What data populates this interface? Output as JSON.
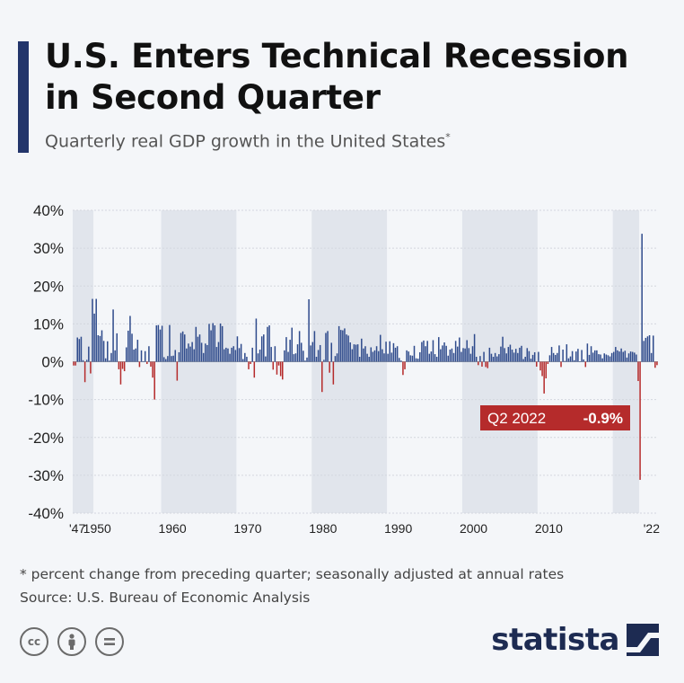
{
  "title": "U.S. Enters Technical Recession in Second Quarter",
  "subtitle": "Quarterly real GDP growth in the United States",
  "subtitle_marker": "*",
  "footnote": "* percent change from preceding quarter; seasonally adjusted at annual rates",
  "source": "Source: U.S. Bureau of Economic Analysis",
  "brand": "statista",
  "license_icons": [
    "creative-commons-icon",
    "attribution-icon",
    "no-derivatives-icon"
  ],
  "colors": {
    "accent": "#23356b",
    "positive": "#2f4b8c",
    "negative": "#b52b2b",
    "band": "#e1e5ec",
    "callout": "#b52b2b"
  },
  "chart_data": {
    "type": "bar",
    "title": "Quarterly real GDP growth in the United States",
    "xlabel": "",
    "ylabel": "",
    "ylim": [
      -40,
      40
    ],
    "yticks": [
      40,
      30,
      20,
      10,
      0,
      -10,
      -20,
      -30,
      -40
    ],
    "ytick_labels": [
      "40%",
      "30%",
      "20%",
      "10%",
      "0%",
      "-10%",
      "-20%",
      "-30%",
      "-40%"
    ],
    "x_start": 1947.25,
    "quarter_step": 0.25,
    "xticks": [
      {
        "label": "'47",
        "year": 1947.25
      },
      {
        "label": "1950",
        "year": 1950.5
      },
      {
        "label": "1960",
        "year": 1960.5
      },
      {
        "label": "1970",
        "year": 1970.5
      },
      {
        "label": "1980",
        "year": 1980.5
      },
      {
        "label": "1990",
        "year": 1990.5
      },
      {
        "label": "2000",
        "year": 2000.5
      },
      {
        "label": "2010",
        "year": 2010.5
      },
      {
        "label": "'22",
        "year": 2022.25
      }
    ],
    "shaded_bands": [
      [
        1947.25,
        1950
      ],
      [
        1959,
        1969
      ],
      [
        1979,
        1989
      ],
      [
        1999,
        2009
      ],
      [
        2019,
        2022.5
      ]
    ],
    "callout": {
      "label": "Q2 2022",
      "value_label": "-0.9%",
      "year": 2022.25,
      "value": -0.9
    },
    "values": [
      -1,
      -1,
      6.4,
      6,
      6.6,
      0.4,
      -5.4,
      0.5,
      4,
      -3.1,
      16.6,
      12.7,
      16.6,
      7,
      6.8,
      8.3,
      5.5,
      0.9,
      5.4,
      0.3,
      2.3,
      13.8,
      3,
      7.5,
      -2,
      -6,
      -1.9,
      -2.5,
      3.8,
      8.2,
      12.1,
      7.4,
      3.2,
      3.5,
      5.8,
      -1.4,
      3,
      0.1,
      2.8,
      -0.6,
      4.1,
      -1.3,
      -4.2,
      -10,
      9.6,
      9.7,
      8.5,
      9.5,
      1.2,
      0.7,
      1.5,
      9.7,
      1.5,
      1.6,
      3.1,
      -5,
      2.5,
      7.6,
      8,
      7.2,
      3.5,
      4.8,
      4,
      5.2,
      3.3,
      9.2,
      6.6,
      7.2,
      5,
      2.3,
      4.8,
      4.4,
      10,
      8.3,
      10.2,
      9.6,
      3.9,
      5.2,
      10.1,
      9.4,
      3.3,
      3.7,
      3.5,
      2.1,
      3.7,
      4.1,
      3.1,
      6.7,
      3.6,
      4.7,
      0.7,
      2.3,
      1.3,
      -2,
      -0.6,
      3.7,
      -4.2,
      11.4,
      2.2,
      3.2,
      6.7,
      7.2,
      1.4,
      9.2,
      9.6,
      3.9,
      -2.1,
      4.1,
      -3.4,
      -1,
      -3.8,
      -4.7,
      3,
      6.5,
      2.6,
      5.8,
      9,
      2,
      2.2,
      4.6,
      8.1,
      5,
      2.9,
      0.3,
      1.1,
      16.5,
      4.3,
      5.2,
      8.1,
      1.3,
      3.1,
      4.4,
      -8,
      0.5,
      7.6,
      8.1,
      -2.9,
      5,
      -6,
      1.5,
      2.2,
      9.4,
      8.4,
      8.3,
      8.8,
      7.2,
      6.9,
      5.1,
      3.3,
      4.6,
      4.5,
      4.6,
      1.3,
      6.1,
      3.5,
      4.1,
      2.1,
      1.3,
      3.8,
      2.6,
      3,
      4.1,
      2.8,
      7.1,
      3.3,
      2.2,
      5.3,
      2.1,
      5.4,
      2.4,
      4.9,
      3.7,
      4.1,
      1,
      0.3,
      -3.5,
      -2,
      3,
      2.7,
      1.7,
      1.6,
      4.2,
      0.9,
      0.8,
      2.5,
      5.2,
      5.6,
      4.1,
      5.5,
      2.1,
      2.7,
      5.7,
      2,
      1.3,
      6.5,
      3.3,
      4.3,
      5.1,
      4.2,
      1.6,
      3.2,
      3.5,
      2.3,
      5.5,
      4,
      6.4,
      2.6,
      3.6,
      3.5,
      5.7,
      3.6,
      2.1,
      4.1,
      7.3,
      1.3,
      -0.9,
      1.5,
      -1.3,
      2.6,
      -1.4,
      -1.7,
      3.7,
      2.1,
      1.3,
      2.3,
      1.4,
      2,
      4,
      6.6,
      3.6,
      2.2,
      3.9,
      4.5,
      3.2,
      2.4,
      3.4,
      2.3,
      3.7,
      4.2,
      0.7,
      1.3,
      3.6,
      2.8,
      0.8,
      1.8,
      2.5,
      -1.3,
      2.6,
      -2.3,
      -3.8,
      -8.4,
      -4.4,
      -0.6,
      1.7,
      3.9,
      2.3,
      1.8,
      2.3,
      4.3,
      -1.4,
      3.2,
      0.2,
      4.6,
      0.9,
      1.4,
      2.8,
      0.4,
      2.7,
      3.4,
      0.1,
      3.1,
      0.6,
      -1.4,
      4.8,
      1.8,
      4.1,
      2.4,
      3,
      3,
      2,
      1.9,
      0.9,
      2.2,
      1.9,
      1.7,
      1.4,
      2.3,
      2.6,
      3.9,
      3,
      2.7,
      3.5,
      2.6,
      2.9,
      1.1,
      2.2,
      2.7,
      2.6,
      2.4,
      1.9,
      -5.1,
      -31.2,
      33.8,
      5.5,
      6.3,
      6.7,
      7,
      2.3,
      6.9,
      -1.6,
      -0.9
    ]
  }
}
